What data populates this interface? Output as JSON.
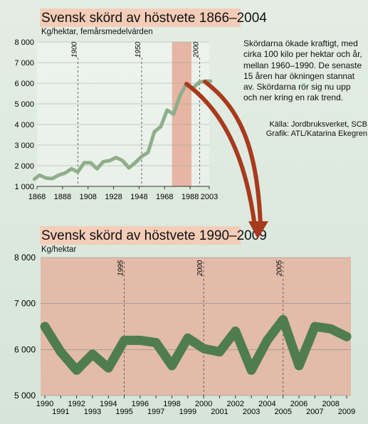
{
  "top": {
    "title": "Svensk skörd av höstvete 1866–2004",
    "subtitle": "Kg/hektar, femårsmedelvärden",
    "description": "Skördarna ökade kraftigt, med cirka 100 kilo per hektar och år, mellan 1960–1990. De senaste 15 åren har ökningen stannat av. Skördarna rör sig nu upp och ner kring en rak trend.",
    "source": "Källa: Jordbruksverket, SCB",
    "credit": "Grafik: ATL/Katarina Ekegren"
  },
  "bottom": {
    "title": "Svensk skörd av höstvete 1990–2009",
    "subtitle": "Kg/hektar"
  },
  "colors": {
    "line": "#4f7d4f",
    "line_light": "#8fae8a",
    "highlight": "#e6b5a3",
    "arrow": "#a83a1e",
    "grid": "#444444"
  },
  "chart_data": [
    {
      "type": "line",
      "title": "Svensk skörd av höstvete 1866–2004",
      "ylabel": "Kg/hektar, femårsmedelvärden",
      "x_ticks": [
        "1868",
        "1888",
        "1908",
        "1928",
        "1948",
        "1968",
        "1988",
        "2003"
      ],
      "y_ticks": [
        "1 000",
        "2 000",
        "3 000",
        "4 000",
        "5 000",
        "6 000",
        "7 000",
        "8 000"
      ],
      "ylim": [
        1000,
        8000
      ],
      "xlim": [
        1868,
        2003
      ],
      "annotations": [
        "1900",
        "1950",
        "2000"
      ],
      "highlight_range": [
        1990,
        2003
      ],
      "x": [
        1866,
        1870,
        1875,
        1880,
        1885,
        1890,
        1895,
        1900,
        1905,
        1910,
        1915,
        1920,
        1925,
        1930,
        1935,
        1940,
        1945,
        1950,
        1955,
        1960,
        1965,
        1970,
        1975,
        1980,
        1985,
        1990,
        1995,
        2000,
        2004
      ],
      "values": [
        1350,
        1550,
        1400,
        1380,
        1550,
        1650,
        1850,
        1700,
        2150,
        2150,
        1850,
        2200,
        2250,
        2400,
        2250,
        1900,
        2150,
        2450,
        2650,
        3650,
        3900,
        4700,
        4500,
        5400,
        5950,
        5750,
        6050,
        6100,
        6100
      ]
    },
    {
      "type": "line",
      "title": "Svensk skörd av höstvete 1990–2009",
      "ylabel": "Kg/hektar",
      "categories": [
        "1990",
        "1991",
        "1992",
        "1993",
        "1994",
        "1995",
        "1996",
        "1997",
        "1998",
        "1999",
        "2000",
        "2001",
        "2002",
        "2003",
        "2004",
        "2005",
        "2006",
        "2007",
        "2008",
        "2009"
      ],
      "values": [
        6500,
        5950,
        5550,
        5900,
        5600,
        6200,
        6200,
        6150,
        5650,
        6250,
        6020,
        5950,
        6400,
        5550,
        6200,
        6650,
        5650,
        6500,
        6450,
        6280
      ],
      "y_ticks": [
        "5 000",
        "6 000",
        "7 000",
        "8 000"
      ],
      "ylim": [
        5000,
        8000
      ],
      "annotations": [
        "1995",
        "2000",
        "2005"
      ]
    }
  ]
}
